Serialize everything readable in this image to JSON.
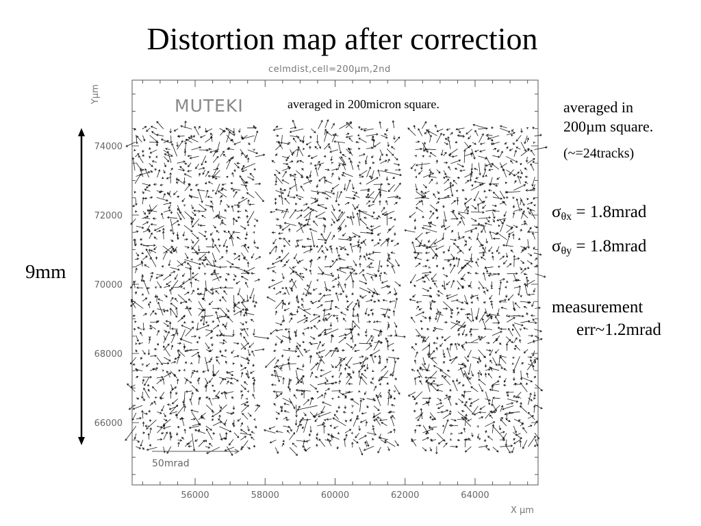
{
  "page": {
    "title": "Distortion map after correction",
    "side_notes": {
      "averaged_line1": "averaged in",
      "averaged_line2": "200µm square.",
      "tracks": "(~=24tracks)",
      "sigma_x": {
        "symbol": "σ",
        "sub": "θx",
        "value": " = 1.8mrad"
      },
      "sigma_y": {
        "symbol": "σ",
        "sub": "θy",
        "value": " = 1.8mrad"
      },
      "measurement_line1": "measurement",
      "measurement_line2": "err~1.2mrad"
    },
    "range_label": "9mm"
  },
  "chart_data": {
    "type": "vector-field",
    "title": "celmdist,cell=200µm,2nd",
    "logo": "MUTEKI",
    "inner_note": "averaged in 200micron square.",
    "xlabel": "X µm",
    "ylabel": "Yµm",
    "xlim": [
      54200,
      65800
    ],
    "ylim": [
      64200,
      75900
    ],
    "x_ticks": [
      56000,
      58000,
      60000,
      62000,
      64000
    ],
    "y_ticks": [
      66000,
      68000,
      70000,
      72000,
      74000
    ],
    "x_tick_labels": [
      "56000",
      "58000",
      "60000",
      "62000",
      "64000"
    ],
    "y_tick_labels": [
      "66000",
      "68000",
      "70000",
      "72000",
      "74000"
    ],
    "cell_size_um": 200,
    "field_x_range": [
      54200,
      65800
    ],
    "field_y_range": [
      65300,
      74500
    ],
    "gap_x_ranges": [
      [
        57800,
        58100
      ],
      [
        61800,
        62100
      ]
    ],
    "scale_arrow": {
      "label": "50mrad",
      "magnitude_mrad": 50
    },
    "sigma_theta_x_mrad": 1.8,
    "sigma_theta_y_mrad": 1.8,
    "grid": false,
    "colors": {
      "arrows": "#1a1a1a",
      "frame": "#555555",
      "text": "#777777"
    }
  }
}
